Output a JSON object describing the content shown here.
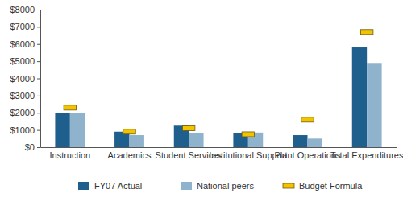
{
  "chart_data": {
    "type": "bar",
    "categories": [
      "Instruction",
      "Academics",
      "Student Services",
      "Institutional Support",
      "Plant Operations",
      "Total Expenditures"
    ],
    "series": [
      {
        "name": "FY07 Actual",
        "color": "#1f5f8e",
        "values": [
          2000,
          900,
          1250,
          800,
          700,
          5800
        ]
      },
      {
        "name": "National peers",
        "color": "#8fb2cd",
        "values": [
          2000,
          700,
          800,
          850,
          500,
          4900
        ]
      },
      {
        "name": "Budget Formula",
        "color": "#f3c300",
        "type": "scatter",
        "marker": "dash",
        "values": [
          2300,
          900,
          1100,
          750,
          1600,
          6700
        ]
      }
    ],
    "ylim": [
      0,
      8000
    ],
    "yticks": [
      {
        "value": 0,
        "label": "$0"
      },
      {
        "value": 1000,
        "label": "$1000"
      },
      {
        "value": 2000,
        "label": "$2000"
      },
      {
        "value": 3000,
        "label": "$3000"
      },
      {
        "value": 4000,
        "label": "$4000"
      },
      {
        "value": 5000,
        "label": "$5000"
      },
      {
        "value": 6000,
        "label": "$6000"
      },
      {
        "value": 7000,
        "label": "$7000"
      },
      {
        "value": 8000,
        "label": "$8000"
      }
    ],
    "grid": false,
    "legend": "bottom"
  }
}
